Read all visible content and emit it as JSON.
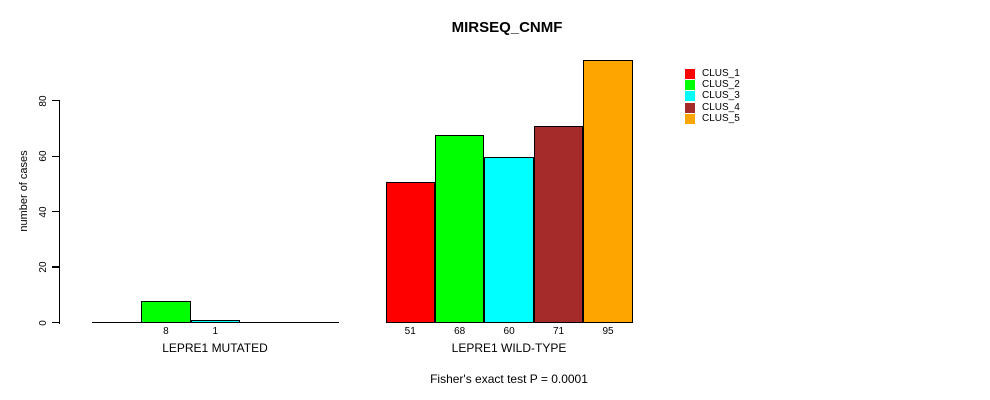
{
  "chart_data": {
    "type": "bar",
    "title": "MIRSEQ_CNMF",
    "ylabel": "number of cases",
    "yticks": [
      0,
      20,
      40,
      60,
      80
    ],
    "ylim": [
      0,
      95
    ],
    "grid": false,
    "legend_position": "right",
    "legend": [
      {
        "name": "CLUS_1",
        "color": "#FF0000"
      },
      {
        "name": "CLUS_2",
        "color": "#00FF00"
      },
      {
        "name": "CLUS_3",
        "color": "#00FFFF"
      },
      {
        "name": "CLUS_4",
        "color": "#A52A2A"
      },
      {
        "name": "CLUS_5",
        "color": "#FFA500"
      }
    ],
    "groups": [
      {
        "label": "LEPRE1 MUTATED",
        "bars": [
          {
            "cluster": "CLUS_2",
            "slot": 2,
            "value": 8
          },
          {
            "cluster": "CLUS_3",
            "slot": 3,
            "value": 1
          }
        ]
      },
      {
        "label": "LEPRE1 WILD-TYPE",
        "bars": [
          {
            "cluster": "CLUS_1",
            "slot": 1,
            "value": 51
          },
          {
            "cluster": "CLUS_2",
            "slot": 2,
            "value": 68
          },
          {
            "cluster": "CLUS_3",
            "slot": 3,
            "value": 60
          },
          {
            "cluster": "CLUS_4",
            "slot": 4,
            "value": 71
          },
          {
            "cluster": "CLUS_5",
            "slot": 5,
            "value": 95
          }
        ]
      }
    ],
    "footnote": "Fisher's exact test P = 0.0001"
  }
}
